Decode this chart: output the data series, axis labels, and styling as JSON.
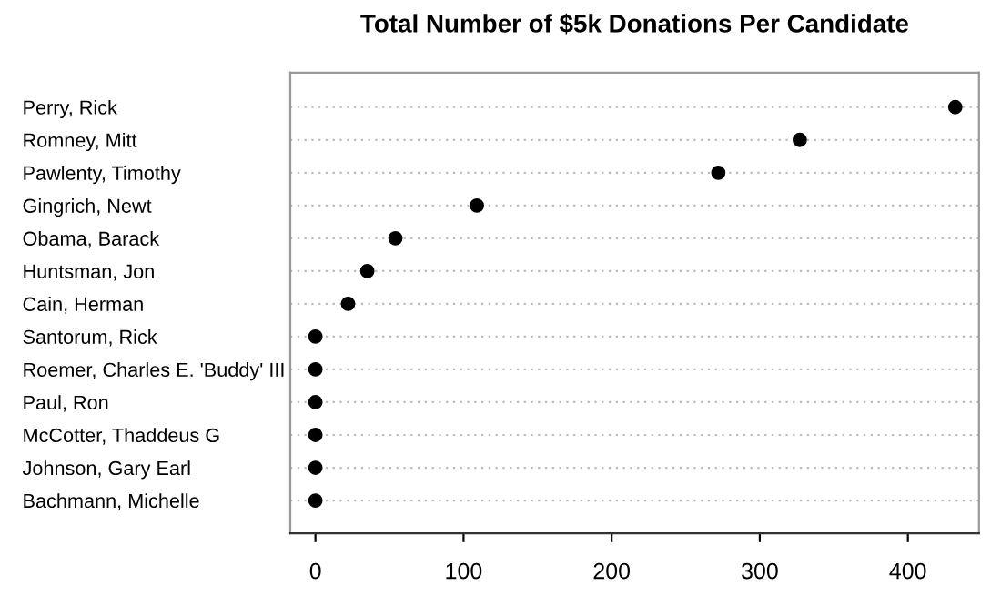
{
  "chart_data": {
    "type": "scatter",
    "orientation": "horizontal",
    "title": "Total Number of $5k Donations Per Candidate",
    "categories": [
      "Perry, Rick",
      "Romney, Mitt",
      "Pawlenty, Timothy",
      "Gingrich, Newt",
      "Obama, Barack",
      "Huntsman, Jon",
      "Cain, Herman",
      "Santorum, Rick",
      "Roemer, Charles E. 'Buddy' III",
      "Paul, Ron",
      "McCotter, Thaddeus G",
      "Johnson, Gary Earl",
      "Bachmann, Michelle"
    ],
    "values": [
      432,
      327,
      272,
      109,
      54,
      35,
      22,
      0,
      0,
      0,
      0,
      0,
      0
    ],
    "color": "#000000",
    "xlim": [
      -17,
      448
    ],
    "xticks": [
      0,
      100,
      200,
      300,
      400
    ],
    "grid": "y",
    "marker": "circle"
  }
}
